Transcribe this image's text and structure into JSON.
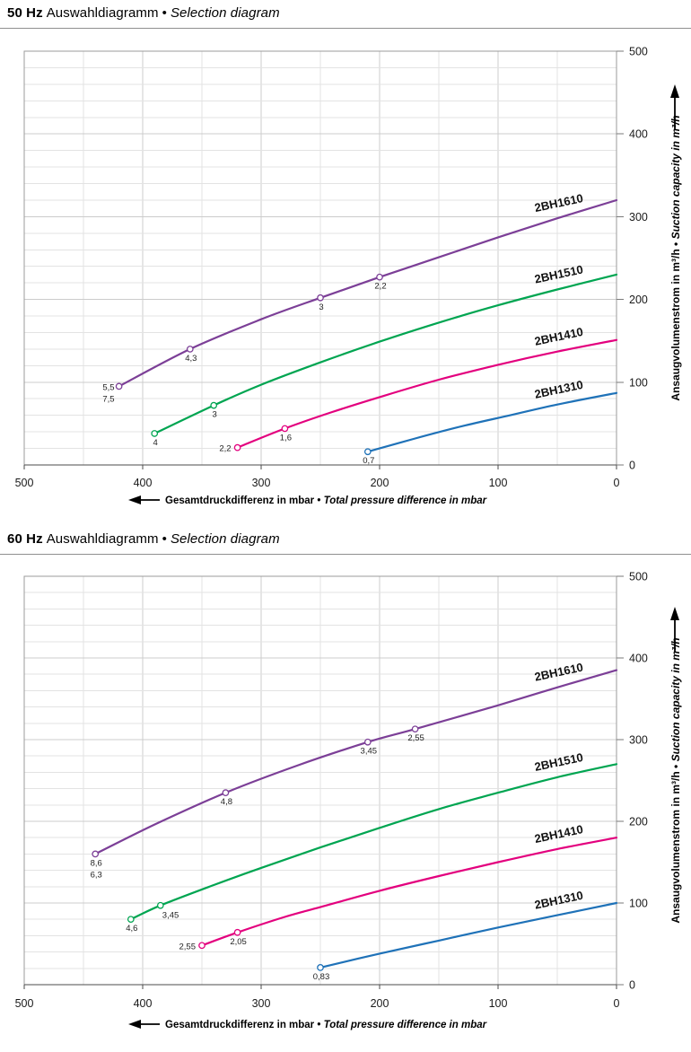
{
  "page": {
    "background": "#ffffff"
  },
  "chart_data": [
    {
      "id": "50hz",
      "type": "line",
      "title": {
        "freq": "50 Hz",
        "label_de": "Auswahldiagramm",
        "sep": "•",
        "label_en": "Selection diagram"
      },
      "x_axis": {
        "label_de": "Gesamtdruckdifferenz in mbar",
        "sep": "•",
        "label_en": "Total pressure difference in mbar",
        "min": 0,
        "max": 500,
        "reversed": true,
        "ticks": [
          500,
          400,
          300,
          200,
          100,
          0
        ],
        "minor_step": 50,
        "major_step": 100,
        "arrow": "left"
      },
      "y_axis": {
        "label_de": "Ansaugvolumenstrom in m³/h",
        "sep": "•",
        "label_en": "Suction capacity in m³/h",
        "min": 0,
        "max": 500,
        "side": "right",
        "ticks": [
          500,
          400,
          300,
          200,
          100,
          0
        ],
        "minor_step": 20,
        "major_step": 100,
        "arrow": "up"
      },
      "grid": true,
      "series": [
        {
          "name": "2BH1610",
          "color": "#7c3f97",
          "label_at_mbar": 48,
          "points": [
            [
              420,
              95
            ],
            [
              360,
              140
            ],
            [
              300,
              176
            ],
            [
              250,
              202
            ],
            [
              200,
              227
            ],
            [
              150,
              251
            ],
            [
              100,
              275
            ],
            [
              50,
              298
            ],
            [
              0,
              320
            ]
          ],
          "markers": [
            {
              "mbar": 420,
              "m3h": 95,
              "labels": [
                "5,5",
                "7,5"
              ],
              "anchor": "left-stack"
            },
            {
              "mbar": 360,
              "m3h": 140,
              "labels": [
                "4,3"
              ],
              "anchor": "below"
            },
            {
              "mbar": 250,
              "m3h": 202,
              "labels": [
                "3"
              ],
              "anchor": "below"
            },
            {
              "mbar": 200,
              "m3h": 227,
              "labels": [
                "2,2"
              ],
              "anchor": "below"
            }
          ]
        },
        {
          "name": "2BH1510",
          "color": "#00a551",
          "label_at_mbar": 48,
          "points": [
            [
              390,
              38
            ],
            [
              340,
              72
            ],
            [
              300,
              97
            ],
            [
              250,
              124
            ],
            [
              200,
              149
            ],
            [
              150,
              172
            ],
            [
              100,
              193
            ],
            [
              50,
              212
            ],
            [
              0,
              230
            ]
          ],
          "markers": [
            {
              "mbar": 390,
              "m3h": 38,
              "labels": [
                "4"
              ],
              "anchor": "below"
            },
            {
              "mbar": 340,
              "m3h": 72,
              "labels": [
                "3"
              ],
              "anchor": "below"
            }
          ]
        },
        {
          "name": "2BH1410",
          "color": "#e3007e",
          "label_at_mbar": 48,
          "points": [
            [
              320,
              21
            ],
            [
              280,
              44
            ],
            [
              240,
              64
            ],
            [
              200,
              82
            ],
            [
              150,
              103
            ],
            [
              100,
              121
            ],
            [
              50,
              137
            ],
            [
              0,
              151
            ]
          ],
          "markers": [
            {
              "mbar": 320,
              "m3h": 21,
              "labels": [
                "2,2"
              ],
              "anchor": "left"
            },
            {
              "mbar": 280,
              "m3h": 44,
              "labels": [
                "1,6"
              ],
              "anchor": "below"
            }
          ]
        },
        {
          "name": "2BH1310",
          "color": "#1f72b8",
          "label_at_mbar": 48,
          "points": [
            [
              210,
              16
            ],
            [
              170,
              32
            ],
            [
              130,
              47
            ],
            [
              90,
              60
            ],
            [
              50,
              73
            ],
            [
              0,
              87
            ]
          ],
          "markers": [
            {
              "mbar": 210,
              "m3h": 16,
              "labels": [
                "0,7"
              ],
              "anchor": "below"
            }
          ]
        }
      ]
    },
    {
      "id": "60hz",
      "type": "line",
      "title": {
        "freq": "60 Hz",
        "label_de": "Auswahldiagramm",
        "sep": "•",
        "label_en": "Selection diagram"
      },
      "x_axis": {
        "label_de": "Gesamtdruckdifferenz in mbar",
        "sep": "•",
        "label_en": "Total pressure difference in mbar",
        "min": 0,
        "max": 500,
        "reversed": true,
        "ticks": [
          500,
          400,
          300,
          200,
          100,
          0
        ],
        "minor_step": 50,
        "major_step": 100,
        "arrow": "left"
      },
      "y_axis": {
        "label_de": "Ansaugvolumenstrom in m³/h",
        "sep": "•",
        "label_en": "Suction capacity in m³/h",
        "min": 0,
        "max": 500,
        "side": "right",
        "ticks": [
          500,
          400,
          300,
          200,
          100,
          0
        ],
        "minor_step": 20,
        "major_step": 100,
        "arrow": "up"
      },
      "grid": true,
      "series": [
        {
          "name": "2BH1610",
          "color": "#7c3f97",
          "label_at_mbar": 48,
          "points": [
            [
              440,
              160
            ],
            [
              390,
              196
            ],
            [
              330,
              235
            ],
            [
              270,
              268
            ],
            [
              210,
              297
            ],
            [
              170,
              313
            ],
            [
              100,
              342
            ],
            [
              50,
              364
            ],
            [
              0,
              385
            ]
          ],
          "markers": [
            {
              "mbar": 440,
              "m3h": 160,
              "labels": [
                "8,6",
                "6,3"
              ],
              "anchor": "below-stack"
            },
            {
              "mbar": 330,
              "m3h": 235,
              "labels": [
                "4,8"
              ],
              "anchor": "below"
            },
            {
              "mbar": 210,
              "m3h": 297,
              "labels": [
                "3,45"
              ],
              "anchor": "below"
            },
            {
              "mbar": 170,
              "m3h": 313,
              "labels": [
                "2,55"
              ],
              "anchor": "below"
            }
          ]
        },
        {
          "name": "2BH1510",
          "color": "#00a551",
          "label_at_mbar": 48,
          "points": [
            [
              410,
              80
            ],
            [
              385,
              97
            ],
            [
              340,
              122
            ],
            [
              300,
              143
            ],
            [
              250,
              168
            ],
            [
              200,
              192
            ],
            [
              150,
              215
            ],
            [
              100,
              235
            ],
            [
              50,
              254
            ],
            [
              0,
              270
            ]
          ],
          "markers": [
            {
              "mbar": 410,
              "m3h": 80,
              "labels": [
                "4,6"
              ],
              "anchor": "below"
            },
            {
              "mbar": 385,
              "m3h": 97,
              "labels": [
                "3,45"
              ],
              "anchor": "below-right"
            }
          ]
        },
        {
          "name": "2BH1410",
          "color": "#e3007e",
          "label_at_mbar": 48,
          "points": [
            [
              350,
              48
            ],
            [
              320,
              64
            ],
            [
              280,
              83
            ],
            [
              250,
              95
            ],
            [
              200,
              115
            ],
            [
              150,
              133
            ],
            [
              100,
              150
            ],
            [
              50,
              166
            ],
            [
              0,
              180
            ]
          ],
          "markers": [
            {
              "mbar": 350,
              "m3h": 48,
              "labels": [
                "2,55"
              ],
              "anchor": "left"
            },
            {
              "mbar": 320,
              "m3h": 64,
              "labels": [
                "2,05"
              ],
              "anchor": "below"
            }
          ]
        },
        {
          "name": "2BH1310",
          "color": "#1f72b8",
          "label_at_mbar": 48,
          "points": [
            [
              250,
              21
            ],
            [
              200,
              38
            ],
            [
              150,
              54
            ],
            [
              100,
              70
            ],
            [
              50,
              85
            ],
            [
              0,
              100
            ]
          ],
          "markers": [
            {
              "mbar": 250,
              "m3h": 21,
              "labels": [
                "0,83"
              ],
              "anchor": "below"
            }
          ]
        }
      ]
    }
  ]
}
